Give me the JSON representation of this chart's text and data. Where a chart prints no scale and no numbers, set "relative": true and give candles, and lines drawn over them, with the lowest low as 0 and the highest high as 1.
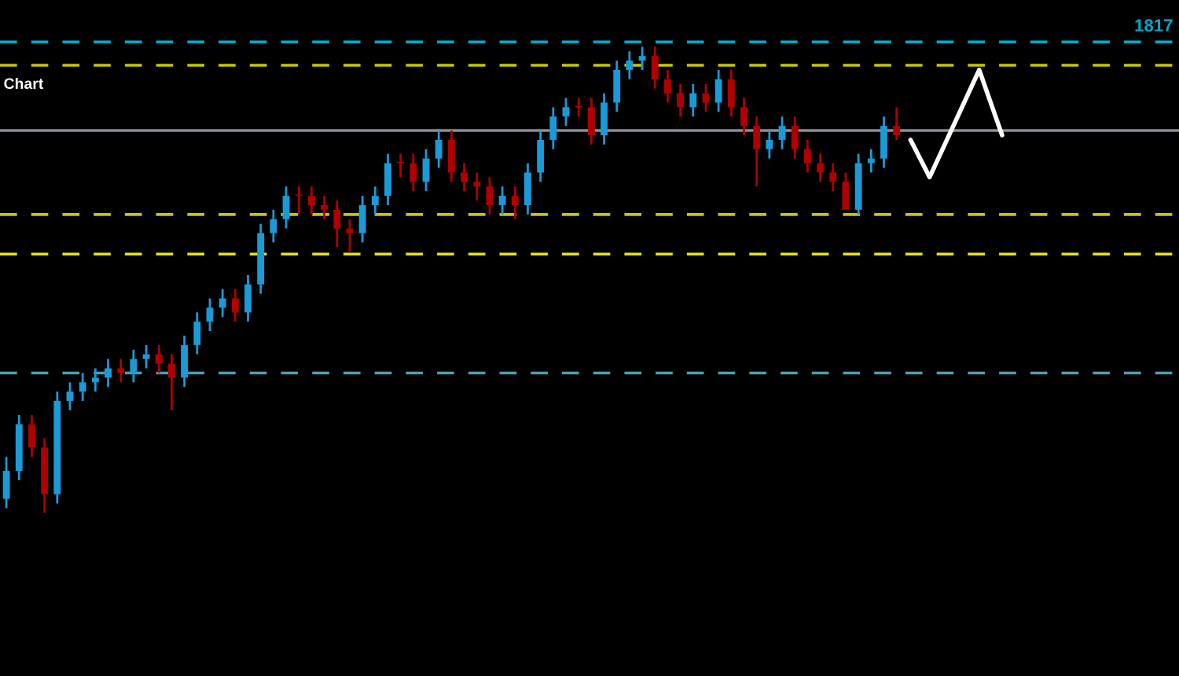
{
  "chart_data": {
    "type": "candlestick",
    "title": "Chart",
    "relative": true,
    "categories": [
      null,
      null,
      null,
      null,
      null,
      null,
      null,
      null,
      null,
      null,
      null,
      null,
      null,
      null,
      null,
      null,
      null,
      null,
      null,
      null,
      null,
      null,
      null,
      null,
      null,
      null,
      null,
      null,
      null,
      null,
      null,
      null,
      null,
      null,
      null,
      null,
      null,
      null,
      null,
      null,
      null,
      null,
      null,
      null,
      null,
      null,
      null,
      null,
      null,
      null,
      null,
      null,
      null,
      null,
      null,
      null,
      null,
      null,
      null,
      null,
      null,
      null,
      null,
      null,
      null,
      null,
      null,
      null,
      null,
      null,
      null
    ],
    "ohlc": [
      [
        0.03,
        0.12,
        0.01,
        0.09
      ],
      [
        0.09,
        0.21,
        0.07,
        0.19
      ],
      [
        0.19,
        0.21,
        0.12,
        0.14
      ],
      [
        0.14,
        0.16,
        0.0,
        0.04
      ],
      [
        0.04,
        0.26,
        0.02,
        0.24
      ],
      [
        0.24,
        0.28,
        0.22,
        0.26
      ],
      [
        0.26,
        0.3,
        0.24,
        0.28
      ],
      [
        0.28,
        0.31,
        0.26,
        0.29
      ],
      [
        0.29,
        0.33,
        0.27,
        0.31
      ],
      [
        0.31,
        0.33,
        0.28,
        0.3
      ],
      [
        0.3,
        0.35,
        0.28,
        0.33
      ],
      [
        0.33,
        0.36,
        0.31,
        0.34
      ],
      [
        0.34,
        0.36,
        0.3,
        0.32
      ],
      [
        0.32,
        0.34,
        0.22,
        0.29
      ],
      [
        0.29,
        0.38,
        0.27,
        0.36
      ],
      [
        0.36,
        0.43,
        0.34,
        0.41
      ],
      [
        0.41,
        0.46,
        0.39,
        0.44
      ],
      [
        0.44,
        0.48,
        0.42,
        0.46
      ],
      [
        0.46,
        0.48,
        0.41,
        0.43
      ],
      [
        0.43,
        0.51,
        0.41,
        0.49
      ],
      [
        0.49,
        0.62,
        0.47,
        0.6
      ],
      [
        0.6,
        0.65,
        0.58,
        0.63
      ],
      [
        0.63,
        0.7,
        0.61,
        0.68
      ],
      [
        0.68,
        0.7,
        0.64,
        0.68
      ],
      [
        0.68,
        0.7,
        0.64,
        0.66
      ],
      [
        0.66,
        0.68,
        0.63,
        0.65
      ],
      [
        0.65,
        0.67,
        0.57,
        0.61
      ],
      [
        0.61,
        0.63,
        0.56,
        0.6
      ],
      [
        0.6,
        0.68,
        0.58,
        0.66
      ],
      [
        0.66,
        0.7,
        0.64,
        0.68
      ],
      [
        0.68,
        0.77,
        0.66,
        0.75
      ],
      [
        0.75,
        0.77,
        0.72,
        0.75
      ],
      [
        0.75,
        0.77,
        0.69,
        0.71
      ],
      [
        0.71,
        0.78,
        0.69,
        0.76
      ],
      [
        0.76,
        0.82,
        0.74,
        0.8
      ],
      [
        0.8,
        0.82,
        0.71,
        0.73
      ],
      [
        0.73,
        0.75,
        0.69,
        0.71
      ],
      [
        0.71,
        0.73,
        0.67,
        0.7
      ],
      [
        0.7,
        0.72,
        0.64,
        0.66
      ],
      [
        0.66,
        0.7,
        0.64,
        0.68
      ],
      [
        0.68,
        0.7,
        0.63,
        0.66
      ],
      [
        0.66,
        0.75,
        0.64,
        0.73
      ],
      [
        0.73,
        0.82,
        0.71,
        0.8
      ],
      [
        0.8,
        0.87,
        0.78,
        0.85
      ],
      [
        0.85,
        0.89,
        0.83,
        0.87
      ],
      [
        0.87,
        0.89,
        0.85,
        0.87
      ],
      [
        0.87,
        0.89,
        0.79,
        0.81
      ],
      [
        0.81,
        0.9,
        0.79,
        0.88
      ],
      [
        0.88,
        0.97,
        0.86,
        0.95
      ],
      [
        0.95,
        0.99,
        0.93,
        0.97
      ],
      [
        0.97,
        1.0,
        0.95,
        0.98
      ],
      [
        0.98,
        1.0,
        0.91,
        0.93
      ],
      [
        0.93,
        0.95,
        0.88,
        0.9
      ],
      [
        0.9,
        0.92,
        0.85,
        0.87
      ],
      [
        0.87,
        0.92,
        0.85,
        0.9
      ],
      [
        0.9,
        0.92,
        0.86,
        0.88
      ],
      [
        0.88,
        0.95,
        0.86,
        0.93
      ],
      [
        0.93,
        0.95,
        0.85,
        0.87
      ],
      [
        0.87,
        0.89,
        0.81,
        0.83
      ],
      [
        0.83,
        0.85,
        0.7,
        0.78
      ],
      [
        0.78,
        0.82,
        0.76,
        0.8
      ],
      [
        0.8,
        0.85,
        0.78,
        0.83
      ],
      [
        0.83,
        0.85,
        0.76,
        0.78
      ],
      [
        0.78,
        0.8,
        0.73,
        0.75
      ],
      [
        0.75,
        0.77,
        0.71,
        0.73
      ],
      [
        0.73,
        0.75,
        0.69,
        0.71
      ],
      [
        0.71,
        0.73,
        0.65,
        0.65
      ],
      [
        0.65,
        0.77,
        0.64,
        0.75
      ],
      [
        0.75,
        0.78,
        0.73,
        0.76
      ],
      [
        0.76,
        0.85,
        0.74,
        0.83
      ],
      [
        0.83,
        0.87,
        0.8,
        0.81
      ]
    ],
    "colors": [
      "#1a9ad6",
      "#1a9ad6",
      "#b00000",
      "#b00000",
      "#1a9ad6",
      "#1a9ad6",
      "#1a9ad6",
      "#1a9ad6",
      "#1a9ad6",
      "#b00000",
      "#1a9ad6",
      "#1a9ad6",
      "#b00000",
      "#b00000",
      "#1a9ad6",
      "#1a9ad6",
      "#1a9ad6",
      "#1a9ad6",
      "#b00000",
      "#1a9ad6",
      "#1a9ad6",
      "#1a9ad6",
      "#1a9ad6",
      "#b00000",
      "#b00000",
      "#b00000",
      "#b00000",
      "#b00000",
      "#1a9ad6",
      "#1a9ad6",
      "#1a9ad6",
      "#b00000",
      "#b00000",
      "#1a9ad6",
      "#1a9ad6",
      "#b00000",
      "#b00000",
      "#b00000",
      "#b00000",
      "#1a9ad6",
      "#b00000",
      "#1a9ad6",
      "#1a9ad6",
      "#1a9ad6",
      "#1a9ad6",
      "#b00000",
      "#b00000",
      "#1a9ad6",
      "#1a9ad6",
      "#1a9ad6",
      "#1a9ad6",
      "#b00000",
      "#b00000",
      "#b00000",
      "#1a9ad6",
      "#b00000",
      "#1a9ad6",
      "#b00000",
      "#b00000",
      "#b00000",
      "#1a9ad6",
      "#1a9ad6",
      "#b00000",
      "#b00000",
      "#b00000",
      "#b00000",
      "#b00000",
      "#1a9ad6",
      "#1a9ad6",
      "#1a9ad6",
      "#b00000"
    ],
    "annotations": [
      "1817"
    ],
    "ref_lines": [
      {
        "axis": "y",
        "value": 1.01,
        "color": "#00a8c8",
        "line_style": "dashed"
      },
      {
        "axis": "y",
        "value": 0.82,
        "color": "#8a8f96",
        "line_style": "solid"
      },
      {
        "axis": "y",
        "value": 0.3,
        "color": "#4a9fb5",
        "line_style": "dashed"
      },
      {
        "axis": "y",
        "value": 0.96,
        "color": "#c8c800",
        "line_style": "dashed"
      },
      {
        "axis": "y",
        "value": 0.64,
        "color": "#c8c800",
        "line_style": "dashed"
      },
      {
        "axis": "y",
        "value": 0.555,
        "color": "#e6e600",
        "line_style": "dashed"
      }
    ]
  }
}
